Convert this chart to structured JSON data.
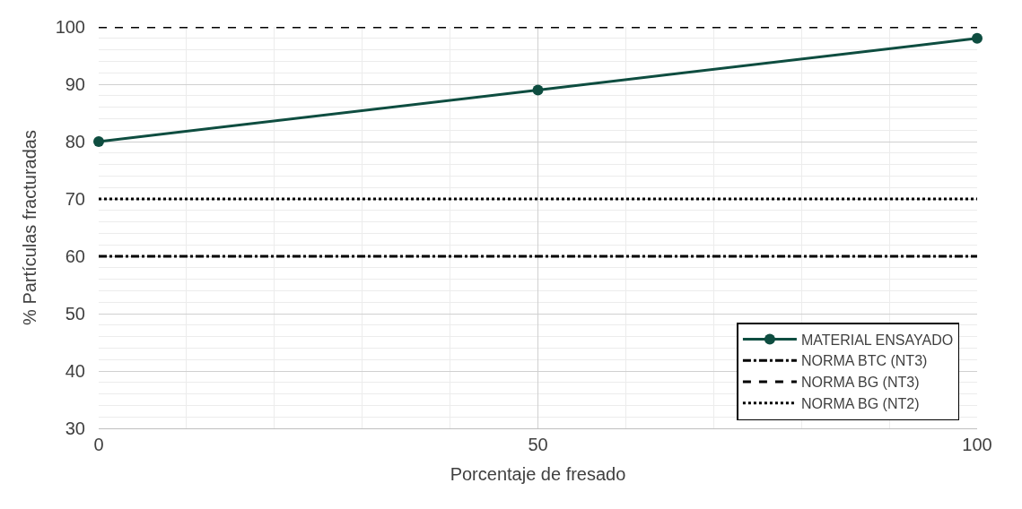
{
  "chart_data": {
    "type": "line",
    "xlabel": "Porcentaje de fresado",
    "ylabel": "% Partículas fracturadas",
    "xlim": [
      0,
      100
    ],
    "xticks": [
      0,
      50,
      100
    ],
    "ylim": [
      30,
      100
    ],
    "yticks": [
      30,
      40,
      50,
      60,
      70,
      80,
      90,
      100
    ],
    "grid": true,
    "legend": "bottom right",
    "series": [
      {
        "name": "MATERIAL ENSAYADO",
        "color": "#0e4d40",
        "x": [
          0,
          50,
          100
        ],
        "values": [
          80,
          89,
          98
        ],
        "marker": "circle",
        "line_style": "solid"
      },
      {
        "name": "NORMA BTC (NT3)",
        "color": "#000000",
        "x": [
          0,
          100
        ],
        "values": [
          60,
          60
        ],
        "marker": "none",
        "line_style": "dashdot"
      },
      {
        "name": "NORMA BG (NT3)",
        "color": "#000000",
        "x": [
          0,
          100
        ],
        "values": [
          100,
          100
        ],
        "marker": "none",
        "line_style": "dashed"
      },
      {
        "name": "NORMA BG (NT2)",
        "color": "#000000",
        "x": [
          0,
          100
        ],
        "values": [
          70,
          70
        ],
        "marker": "none",
        "line_style": "dotted"
      }
    ]
  }
}
